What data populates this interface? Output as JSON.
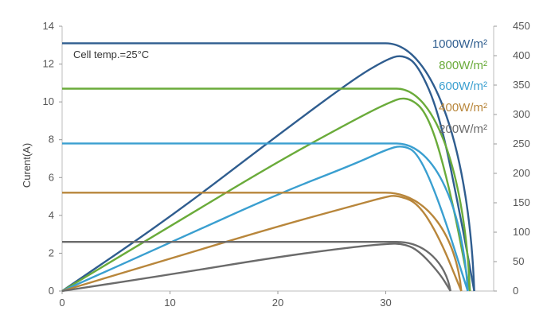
{
  "chart_data": {
    "type": "line",
    "title": "",
    "annotation": "Cell temp.=25°C",
    "ylabel": "Curent(A)",
    "xlabel": "",
    "y2label": "",
    "xlim": [
      0,
      40
    ],
    "ylim": [
      0,
      14
    ],
    "y2lim": [
      0,
      450
    ],
    "xticks": [
      0,
      10,
      20,
      30
    ],
    "yticks": [
      0,
      2,
      4,
      6,
      8,
      10,
      12,
      14
    ],
    "y2ticks": [
      0,
      50,
      100,
      150,
      200,
      250,
      300,
      350,
      400,
      450
    ],
    "grid": false,
    "legend_position": "top-right",
    "series": [
      {
        "name": "1000W/m²",
        "color": "#2f5d8f",
        "current": {
          "isc": 13.1,
          "knee_v": 30.0,
          "voc": 38.2
        },
        "power": {
          "x": [
            0,
            10,
            20,
            27,
            30,
            31.5,
            33,
            35,
            37,
            38.2
          ],
          "y": [
            0,
            125,
            265,
            360,
            393,
            402,
            385,
            300,
            120,
            0
          ]
        }
      },
      {
        "name": "800W/m²",
        "color": "#6aab3a",
        "current": {
          "isc": 10.7,
          "knee_v": 31.0,
          "voc": 37.8
        },
        "power": {
          "x": [
            0,
            10,
            20,
            27,
            30,
            32,
            34,
            36,
            37.8
          ],
          "y": [
            0,
            110,
            220,
            290,
            318,
            332,
            300,
            170,
            0
          ]
        }
      },
      {
        "name": "600W/m²",
        "color": "#3a9fd0",
        "current": {
          "isc": 7.8,
          "knee_v": 31.0,
          "voc": 37.6
        },
        "power": {
          "x": [
            0,
            10,
            20,
            27,
            30,
            31.5,
            33,
            35,
            37.6
          ],
          "y": [
            0,
            82,
            165,
            215,
            240,
            248,
            235,
            150,
            0
          ]
        }
      },
      {
        "name": "400W/m²",
        "color": "#b8863b",
        "current": {
          "isc": 5.2,
          "knee_v": 30.0,
          "voc": 37.0
        },
        "power": {
          "x": [
            0,
            10,
            20,
            27,
            30,
            31,
            33,
            35,
            37.0
          ],
          "y": [
            0,
            55,
            110,
            145,
            160,
            163,
            150,
            90,
            0
          ]
        }
      },
      {
        "name": "200W/m²",
        "color": "#6b6b6b",
        "current": {
          "isc": 2.6,
          "knee_v": 31.0,
          "voc": 36.0
        },
        "power": {
          "x": [
            0,
            10,
            20,
            27,
            30,
            31.5,
            33,
            35,
            36.0
          ],
          "y": [
            0,
            28,
            58,
            75,
            80,
            81,
            70,
            30,
            0
          ]
        }
      }
    ]
  },
  "legend_colors": {
    "1000W/m²": "#2f5d8f",
    "800W/m²": "#6aab3a",
    "600W/m²": "#3a9fd0",
    "400W/m²": "#b8863b",
    "200W/m²": "#6b6b6b"
  }
}
